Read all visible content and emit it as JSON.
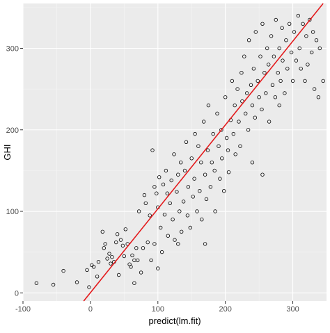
{
  "chart_data": {
    "type": "scatter",
    "title": "",
    "xlabel": "predict(lm.fit)",
    "ylabel": "GHI",
    "xlim": [
      -100,
      350
    ],
    "ylim": [
      -10,
      355
    ],
    "x_ticks": [
      "-100",
      "0",
      "100",
      "200",
      "300"
    ],
    "y_ticks": [
      "0",
      "100",
      "200",
      "300"
    ],
    "grid": true,
    "legend": "none",
    "colors": {
      "panel_background": "#ebebeb",
      "grid_major": "#ffffff",
      "grid_minor": "#f5f5f5",
      "point_stroke": "#000000",
      "fit_line": "#e41a1c"
    },
    "fit_line": {
      "x": [
        -10,
        345
      ],
      "y": [
        -10,
        355
      ]
    },
    "series": [
      {
        "values": [
          [
            -80,
            12
          ],
          [
            -55,
            10
          ],
          [
            -40,
            27
          ],
          [
            -20,
            13
          ],
          [
            -2,
            7
          ],
          [
            -5,
            28
          ],
          [
            2,
            34
          ],
          [
            5,
            32
          ],
          [
            10,
            20
          ],
          [
            12,
            38
          ],
          [
            18,
            75
          ],
          [
            20,
            55
          ],
          [
            22,
            60
          ],
          [
            25,
            42
          ],
          [
            28,
            48
          ],
          [
            30,
            36
          ],
          [
            32,
            44
          ],
          [
            35,
            38
          ],
          [
            38,
            62
          ],
          [
            40,
            72
          ],
          [
            42,
            22
          ],
          [
            45,
            65
          ],
          [
            48,
            58
          ],
          [
            50,
            45
          ],
          [
            52,
            78
          ],
          [
            55,
            60
          ],
          [
            58,
            35
          ],
          [
            60,
            32
          ],
          [
            62,
            46
          ],
          [
            65,
            12
          ],
          [
            68,
            55
          ],
          [
            70,
            40
          ],
          [
            72,
            100
          ],
          [
            75,
            25
          ],
          [
            78,
            55
          ],
          [
            80,
            120
          ],
          [
            82,
            110
          ],
          [
            85,
            62
          ],
          [
            88,
            95
          ],
          [
            90,
            40
          ],
          [
            92,
            175
          ],
          [
            95,
            60
          ],
          [
            95,
            130
          ],
          [
            98,
            122
          ],
          [
            100,
            105
          ],
          [
            102,
            142
          ],
          [
            104,
            80
          ],
          [
            106,
            50
          ],
          [
            108,
            133
          ],
          [
            110,
            96
          ],
          [
            112,
            150
          ],
          [
            114,
            122
          ],
          [
            115,
            70
          ],
          [
            118,
            110
          ],
          [
            120,
            138
          ],
          [
            122,
            90
          ],
          [
            124,
            170
          ],
          [
            125,
            65
          ],
          [
            128,
            124
          ],
          [
            130,
            145
          ],
          [
            132,
            100
          ],
          [
            134,
            160
          ],
          [
            135,
            75
          ],
          [
            138,
            112
          ],
          [
            140,
            150
          ],
          [
            142,
            185
          ],
          [
            144,
            95
          ],
          [
            145,
            130
          ],
          [
            148,
            80
          ],
          [
            150,
            165
          ],
          [
            152,
            118
          ],
          [
            154,
            140
          ],
          [
            155,
            195
          ],
          [
            158,
            100
          ],
          [
            160,
            180
          ],
          [
            162,
            125
          ],
          [
            164,
            160
          ],
          [
            165,
            90
          ],
          [
            168,
            210
          ],
          [
            170,
            145
          ],
          [
            172,
            115
          ],
          [
            174,
            175
          ],
          [
            175,
            230
          ],
          [
            178,
            130
          ],
          [
            180,
            160
          ],
          [
            182,
            195
          ],
          [
            184,
            150
          ],
          [
            185,
            100
          ],
          [
            188,
            220
          ],
          [
            190,
            180
          ],
          [
            192,
            140
          ],
          [
            194,
            200
          ],
          [
            195,
            165
          ],
          [
            198,
            125
          ],
          [
            200,
            240
          ],
          [
            202,
            190
          ],
          [
            204,
            175
          ],
          [
            205,
            148
          ],
          [
            208,
            212
          ],
          [
            210,
            260
          ],
          [
            212,
            195
          ],
          [
            214,
            230
          ],
          [
            215,
            170
          ],
          [
            218,
            250
          ],
          [
            220,
            210
          ],
          [
            222,
            180
          ],
          [
            224,
            270
          ],
          [
            225,
            235
          ],
          [
            228,
            290
          ],
          [
            230,
            220
          ],
          [
            232,
            245
          ],
          [
            234,
            200
          ],
          [
            235,
            310
          ],
          [
            238,
            255
          ],
          [
            240,
            230
          ],
          [
            242,
            275
          ],
          [
            244,
            215
          ],
          [
            245,
            320
          ],
          [
            248,
            260
          ],
          [
            250,
            240
          ],
          [
            252,
            290
          ],
          [
            254,
            225
          ],
          [
            255,
            330
          ],
          [
            258,
            270
          ],
          [
            260,
            245
          ],
          [
            262,
            300
          ],
          [
            264,
            280
          ],
          [
            265,
            210
          ],
          [
            268,
            315
          ],
          [
            270,
            255
          ],
          [
            272,
            290
          ],
          [
            274,
            240
          ],
          [
            275,
            335
          ],
          [
            278,
            270
          ],
          [
            280,
            300
          ],
          [
            282,
            260
          ],
          [
            284,
            325
          ],
          [
            285,
            285
          ],
          [
            288,
            245
          ],
          [
            290,
            310
          ],
          [
            292,
            275
          ],
          [
            295,
            330
          ],
          [
            298,
            295
          ],
          [
            300,
            260
          ],
          [
            302,
            320
          ],
          [
            305,
            285
          ],
          [
            308,
            340
          ],
          [
            310,
            300
          ],
          [
            312,
            275
          ],
          [
            315,
            330
          ],
          [
            318,
            260
          ],
          [
            320,
            315
          ],
          [
            322,
            280
          ],
          [
            325,
            335
          ],
          [
            328,
            295
          ],
          [
            330,
            320
          ],
          [
            332,
            250
          ],
          [
            335,
            310
          ],
          [
            338,
            240
          ],
          [
            340,
            300
          ],
          [
            345,
            260
          ],
          [
            255,
            145
          ],
          [
            170,
            60
          ],
          [
            65,
            40
          ],
          [
            130,
            60
          ],
          [
            240,
            160
          ],
          [
            280,
            230
          ],
          [
            100,
            30
          ]
        ]
      }
    ]
  }
}
